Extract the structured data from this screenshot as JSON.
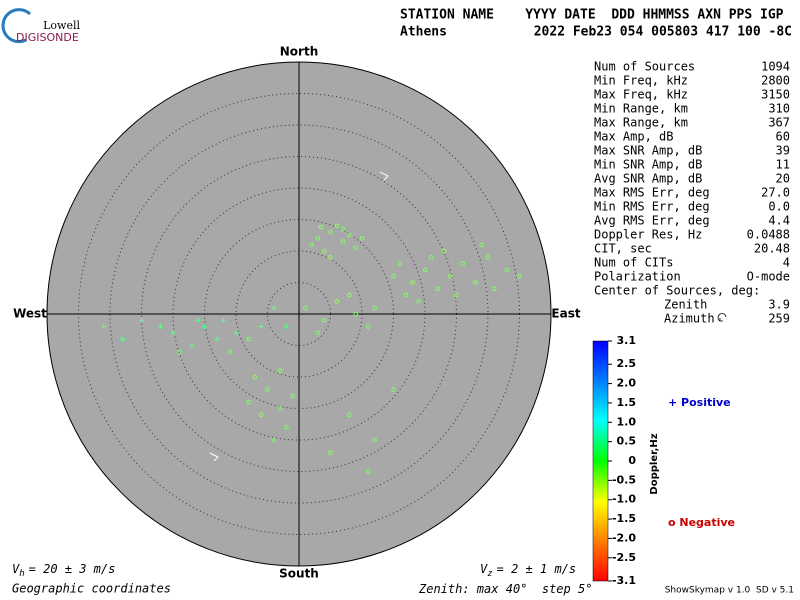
{
  "logo": {
    "top": "Lowell",
    "bottom": "DIGISONDE"
  },
  "header": {
    "columns": "STATION NAME    YYYY DATE  DDD HHMMSS AXN PPS IGP",
    "station": "Athens",
    "values": "2022 Feb23 054 005803 417 100 -8C"
  },
  "directions": {
    "north": "North",
    "south": "South",
    "west": "West",
    "east": "East"
  },
  "stats": [
    [
      "Num of Sources",
      "1094"
    ],
    [
      "Min Freq, kHz",
      "2800"
    ],
    [
      "Max Freq, kHz",
      "3150"
    ],
    [
      "Min Range, km",
      "310"
    ],
    [
      "Max Range, km",
      "367"
    ],
    [
      "Max Amp, dB",
      "60"
    ],
    [
      "Max SNR Amp, dB",
      "39"
    ],
    [
      "Min SNR Amp, dB",
      "11"
    ],
    [
      "Avg SNR Amp, dB",
      "20"
    ],
    [
      "Max RMS Err, deg",
      "27.0"
    ],
    [
      "Min RMS Err, deg",
      "0.0"
    ],
    [
      "Avg RMS Err, deg",
      "4.4"
    ],
    [
      "Doppler Res, Hz",
      "0.0488"
    ],
    [
      "CIT, sec",
      "20.48"
    ],
    [
      "Num of CITs",
      "4"
    ],
    [
      "Polarization",
      "O-mode"
    ]
  ],
  "center": {
    "title": "Center of Sources, deg:",
    "zenith_label": "Zenith",
    "zenith": "3.9",
    "azimuth_label": "Azimuth",
    "azimuth": "259"
  },
  "colorbar": {
    "label": "Doppler,Hz",
    "lim": [
      -3.1,
      3.1
    ],
    "ticks": [
      3.1,
      2.5,
      {
        "value": 2,
        "label": "2.0"
      },
      1.5,
      {
        "value": 1,
        "label": "1.0"
      },
      0.5,
      0,
      -0.5,
      {
        "value": -1,
        "label": "-1.0"
      },
      -1.5,
      {
        "value": -2,
        "label": "-2.0"
      },
      -2.5,
      -3.1
    ]
  },
  "legend": {
    "positive": "Positive",
    "negative": "Negative"
  },
  "footer": {
    "vh": {
      "v": "V",
      "sub": "h",
      "text": "= 20 ± 3 m/s"
    },
    "vz": {
      "v": "V",
      "sub": "z",
      "text": "= 2 ± 1 m/s"
    },
    "coords": "Geographic coordinates",
    "zenith": {
      "prefix": "Zenith: max",
      "max": 40,
      "unit": "°",
      "step_label": "step",
      "step": 5
    },
    "version": "ShowSkymap v 1.0  SD v 5.1"
  },
  "sources": [
    {
      "east": 3,
      "north": 12,
      "doppler": -0.1
    },
    {
      "east": 5,
      "north": 13,
      "doppler": -0.2
    },
    {
      "east": 7,
      "north": 11.5,
      "doppler": -0.1
    },
    {
      "east": 4,
      "north": 10,
      "doppler": -0.15
    },
    {
      "east": 8,
      "north": 12.5,
      "doppler": -0.1
    },
    {
      "east": 6,
      "north": 14,
      "doppler": -0.2
    },
    {
      "east": 2,
      "north": 11,
      "doppler": -0.1
    },
    {
      "east": 9,
      "north": 10.5,
      "doppler": -0.1
    },
    {
      "east": 5,
      "north": 9,
      "doppler": -0.2
    },
    {
      "east": 7,
      "north": 13.5,
      "doppler": -0.1
    },
    {
      "east": 3.5,
      "north": 13.8,
      "doppler": -0.1
    },
    {
      "east": 10,
      "north": 12,
      "doppler": -0.2
    },
    {
      "east": 15,
      "north": 6,
      "doppler": -0.1
    },
    {
      "east": 18,
      "north": 5,
      "doppler": -0.2
    },
    {
      "east": 20,
      "north": 7,
      "doppler": -0.1
    },
    {
      "east": 22,
      "north": 4,
      "doppler": -0.1
    },
    {
      "east": 24,
      "north": 6,
      "doppler": -0.2
    },
    {
      "east": 17,
      "north": 3,
      "doppler": -0.1
    },
    {
      "east": 26,
      "north": 8,
      "doppler": -0.1
    },
    {
      "east": 28,
      "north": 5,
      "doppler": -0.2
    },
    {
      "east": 30,
      "north": 9,
      "doppler": -0.1
    },
    {
      "east": 33,
      "north": 7,
      "doppler": -0.1
    },
    {
      "east": 35,
      "north": 6,
      "doppler": -0.2
    },
    {
      "east": 21,
      "north": 9,
      "doppler": -0.1
    },
    {
      "east": 19,
      "north": 2,
      "doppler": -0.1
    },
    {
      "east": 25,
      "north": 3,
      "doppler": -0.2
    },
    {
      "east": 29,
      "north": 11,
      "doppler": -0.1
    },
    {
      "east": 31,
      "north": 4,
      "doppler": -0.1
    },
    {
      "east": 23,
      "north": 10,
      "doppler": -0.2
    },
    {
      "east": 16,
      "north": 8,
      "doppler": -0.1
    },
    {
      "east": 1,
      "north": 1,
      "doppler": -0.1
    },
    {
      "east": 4,
      "north": -1,
      "doppler": -0.1
    },
    {
      "east": 6,
      "north": 2,
      "doppler": -0.2
    },
    {
      "east": 9,
      "north": 0,
      "doppler": -0.1
    },
    {
      "east": -2,
      "north": -2,
      "doppler": 0.1
    },
    {
      "east": 11,
      "north": -2,
      "doppler": -0.1
    },
    {
      "east": 8,
      "north": 3,
      "doppler": -0.2
    },
    {
      "east": 3,
      "north": -3,
      "doppler": -0.1
    },
    {
      "east": 12,
      "north": 1,
      "doppler": -0.1
    },
    {
      "east": -4,
      "north": 1,
      "doppler": 0.2
    },
    {
      "east": -10,
      "north": -3,
      "doppler": 0.2
    },
    {
      "east": -13,
      "north": -4,
      "doppler": 0.1
    },
    {
      "east": -15,
      "north": -2,
      "doppler": 0.2
    },
    {
      "east": -17,
      "north": -5,
      "doppler": 0.1
    },
    {
      "east": -12,
      "north": -1,
      "doppler": 0.2
    },
    {
      "east": -8,
      "north": -4,
      "doppler": -0.1
    },
    {
      "east": -20,
      "north": -3,
      "doppler": 0.2
    },
    {
      "east": -22,
      "north": -2,
      "doppler": 0.1
    },
    {
      "east": -19,
      "north": -6,
      "doppler": -0.1
    },
    {
      "east": -25,
      "north": -1,
      "doppler": 0.2
    },
    {
      "east": -6,
      "north": -2,
      "doppler": 0.1
    },
    {
      "east": -11,
      "north": -6,
      "doppler": -0.1
    },
    {
      "east": -16,
      "north": -1,
      "doppler": 0.2
    },
    {
      "east": -31,
      "north": -2,
      "doppler": 0.1
    },
    {
      "east": -28,
      "north": -4,
      "doppler": 0.2
    },
    {
      "east": -5,
      "north": -12,
      "doppler": -0.1
    },
    {
      "east": -3,
      "north": -15,
      "doppler": -0.1
    },
    {
      "east": -7,
      "north": -10,
      "doppler": -0.2
    },
    {
      "east": -2,
      "north": -18,
      "doppler": -0.1
    },
    {
      "east": -4,
      "north": -20,
      "doppler": -0.1
    },
    {
      "east": -6,
      "north": -16,
      "doppler": -0.2
    },
    {
      "east": -1,
      "north": -13,
      "doppler": -0.1
    },
    {
      "east": -8,
      "north": -14,
      "doppler": -0.1
    },
    {
      "east": -3,
      "north": -9,
      "doppler": -0.2
    },
    {
      "east": 8,
      "north": -16,
      "doppler": -0.1
    },
    {
      "east": 12,
      "north": -20,
      "doppler": -0.1
    },
    {
      "east": 5,
      "north": -22,
      "doppler": -0.2
    },
    {
      "east": 15,
      "north": -12,
      "doppler": -0.1
    },
    {
      "east": 11,
      "north": -25,
      "doppler": -0.1
    }
  ]
}
